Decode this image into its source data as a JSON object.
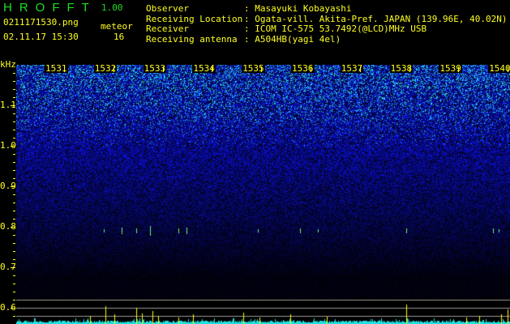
{
  "app": {
    "title": "HROFFT",
    "version": "1.00"
  },
  "file_name": "0211171530.png",
  "datetime": "02.11.17 15:30",
  "meteor": {
    "label": "meteor",
    "count": "16"
  },
  "info": [
    {
      "label": "Observer",
      "value": ": Masayuki Kobayashi"
    },
    {
      "label": "Receiving Location",
      "value": ": Ogata-vill. Akita-Pref. JAPAN (139.96E, 40.02N)"
    },
    {
      "label": "Receiver",
      "value": ": ICOM IC-575 53.7492(@LCD)MHz USB"
    },
    {
      "label": "Receiving antenna",
      "value": ": A504HB(yagi 4el)"
    }
  ],
  "freq_axis": {
    "unit": "kHz",
    "labels": [
      "1.1",
      "1.0",
      "0.9",
      "0.8",
      "0.7",
      "0.6"
    ]
  },
  "time_axis": {
    "labels": [
      "1531",
      "1532",
      "1533",
      "1534",
      "1535",
      "1536",
      "1537",
      "1538",
      "1539",
      "1540"
    ]
  },
  "colors": {
    "text": "#ffff22",
    "title": "#22dd22",
    "noise": "#1010ff",
    "level": "#22e0e0",
    "spike": "#ffff00",
    "grid": "#999999"
  }
}
